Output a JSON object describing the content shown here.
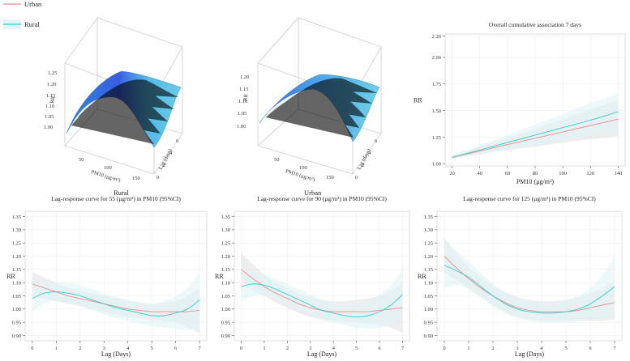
{
  "legend": {
    "items": [
      {
        "label": "Urban",
        "color": "#f08a8a"
      },
      {
        "label": "Rural",
        "color": "#33cccc"
      }
    ]
  },
  "surfaces": [
    {
      "id": "rural",
      "label": "Rural",
      "xlabel": "PM10 (μg/m³)",
      "ylabel": "Lag (days)",
      "zlabel": "RR",
      "x_ticks": [
        "50",
        "100",
        "150"
      ],
      "y_ticks": [
        "0",
        "2",
        "4",
        "6"
      ],
      "z_ticks": [
        "1.00",
        "1.05",
        "1.10",
        "1.15",
        "1.20",
        "1.25"
      ],
      "zlim": [
        1.0,
        1.25
      ]
    },
    {
      "id": "urban",
      "label": "Urban",
      "xlabel": "PM10 (μg/m³)",
      "ylabel": "Lag (days)",
      "zlabel": "RR",
      "x_ticks": [
        "50",
        "100",
        "150"
      ],
      "y_ticks": [
        "0",
        "2",
        "4",
        "6"
      ],
      "z_ticks": [
        "1.00",
        "1.05",
        "1.10",
        "1.15",
        "1.20"
      ],
      "zlim": [
        1.0,
        1.2
      ]
    }
  ],
  "chart_data": [
    {
      "type": "line",
      "title": "Overall cumulative association 7 days",
      "xlabel": "PM10 (μg/m³)",
      "ylabel": "RR",
      "xlim": [
        15,
        145
      ],
      "ylim": [
        0.98,
        2.22
      ],
      "x_ticks": [
        20,
        40,
        60,
        80,
        100,
        120,
        140
      ],
      "y_ticks": [
        "1.00",
        "1.25",
        "1.50",
        "1.75",
        "2.00",
        "2.20"
      ],
      "y_tick_values": [
        1.0,
        1.25,
        1.5,
        1.75,
        2.0,
        2.2
      ],
      "grid": true,
      "series": [
        {
          "name": "Urban",
          "color": "#f08a8a",
          "x": [
            20,
            40,
            60,
            80,
            100,
            120,
            140
          ],
          "values": [
            1.06,
            1.12,
            1.18,
            1.24,
            1.3,
            1.36,
            1.42
          ],
          "lower": [
            1.05,
            1.09,
            1.13,
            1.16,
            1.2,
            1.23,
            1.26
          ],
          "upper": [
            1.08,
            1.16,
            1.24,
            1.33,
            1.42,
            1.51,
            1.6
          ]
        },
        {
          "name": "Rural",
          "color": "#33cccc",
          "x": [
            20,
            40,
            60,
            80,
            100,
            120,
            140
          ],
          "values": [
            1.06,
            1.13,
            1.2,
            1.27,
            1.34,
            1.41,
            1.49
          ],
          "lower": [
            1.05,
            1.1,
            1.14,
            1.18,
            1.22,
            1.26,
            1.3
          ],
          "upper": [
            1.08,
            1.17,
            1.27,
            1.37,
            1.47,
            1.57,
            1.66
          ]
        }
      ]
    },
    {
      "type": "line",
      "title": "Lag-response curve for 55 (μg/m³) in PM10 (95%CI)",
      "xlabel": "Lag (Days)",
      "ylabel": "RR",
      "xlim": [
        -0.3,
        7.3
      ],
      "ylim": [
        0.88,
        1.37
      ],
      "x_ticks": [
        0,
        1,
        2,
        3,
        4,
        5,
        6,
        7
      ],
      "y_ticks": [
        "0.90",
        "0.95",
        "1.00",
        "1.05",
        "1.10",
        "1.15",
        "1.20",
        "1.25",
        "1.30",
        "1.35"
      ],
      "y_tick_values": [
        0.9,
        0.95,
        1.0,
        1.05,
        1.1,
        1.15,
        1.2,
        1.25,
        1.3,
        1.35
      ],
      "grid": true,
      "series": [
        {
          "name": "Urban",
          "color": "#f08a8a",
          "x": [
            0,
            0.5,
            1,
            1.5,
            2,
            2.5,
            3,
            3.5,
            4,
            4.5,
            5,
            5.5,
            6,
            6.5,
            7
          ],
          "values": [
            1.095,
            1.08,
            1.065,
            1.05,
            1.04,
            1.03,
            1.02,
            1.01,
            1.0,
            0.995,
            0.99,
            0.99,
            0.99,
            0.99,
            0.995
          ],
          "lower": [
            1.05,
            1.04,
            1.03,
            1.02,
            1.01,
            1.0,
            0.99,
            0.98,
            0.97,
            0.965,
            0.96,
            0.955,
            0.95,
            0.93,
            0.91
          ],
          "upper": [
            1.14,
            1.12,
            1.1,
            1.08,
            1.07,
            1.06,
            1.05,
            1.04,
            1.03,
            1.025,
            1.02,
            1.025,
            1.03,
            1.05,
            1.08
          ]
        },
        {
          "name": "Rural",
          "color": "#33cccc",
          "x": [
            0,
            0.5,
            1,
            1.5,
            2,
            2.5,
            3,
            3.5,
            4,
            4.5,
            5,
            5.5,
            6,
            6.5,
            7
          ],
          "values": [
            1.04,
            1.06,
            1.065,
            1.06,
            1.05,
            1.035,
            1.02,
            1.005,
            0.995,
            0.985,
            0.975,
            0.975,
            0.985,
            1.0,
            1.035
          ],
          "lower": [
            0.99,
            1.02,
            1.03,
            1.02,
            1.01,
            0.995,
            0.98,
            0.965,
            0.955,
            0.945,
            0.935,
            0.93,
            0.925,
            0.92,
            0.93
          ],
          "upper": [
            1.11,
            1.1,
            1.1,
            1.1,
            1.09,
            1.075,
            1.06,
            1.045,
            1.035,
            1.025,
            1.02,
            1.03,
            1.05,
            1.08,
            1.14
          ]
        }
      ]
    },
    {
      "type": "line",
      "title": "Lag-response curve for 90 (μg/m³) in PM10 (95%CI)",
      "xlabel": "Lag (Days)",
      "ylabel": "RR",
      "xlim": [
        -0.3,
        7.3
      ],
      "ylim": [
        0.88,
        1.37
      ],
      "x_ticks": [
        0,
        1,
        2,
        3,
        4,
        5,
        6,
        7
      ],
      "y_ticks": [
        "0.90",
        "0.95",
        "1.00",
        "1.05",
        "1.10",
        "1.15",
        "1.20",
        "1.25",
        "1.30",
        "1.35"
      ],
      "y_tick_values": [
        0.9,
        0.95,
        1.0,
        1.05,
        1.1,
        1.15,
        1.2,
        1.25,
        1.3,
        1.35
      ],
      "grid": true,
      "series": [
        {
          "name": "Urban",
          "color": "#f08a8a",
          "x": [
            0,
            0.5,
            1,
            1.5,
            2,
            2.5,
            3,
            3.5,
            4,
            4.5,
            5,
            5.5,
            6,
            6.5,
            7
          ],
          "values": [
            1.15,
            1.115,
            1.085,
            1.06,
            1.04,
            1.02,
            1.005,
            0.995,
            0.99,
            0.99,
            0.99,
            0.99,
            0.995,
            1.0,
            1.005
          ],
          "lower": [
            1.1,
            1.07,
            1.05,
            1.025,
            1.005,
            0.985,
            0.97,
            0.96,
            0.955,
            0.955,
            0.95,
            0.945,
            0.94,
            0.93,
            0.91
          ],
          "upper": [
            1.21,
            1.17,
            1.13,
            1.1,
            1.08,
            1.06,
            1.045,
            1.035,
            1.03,
            1.03,
            1.035,
            1.04,
            1.05,
            1.07,
            1.1
          ]
        },
        {
          "name": "Rural",
          "color": "#33cccc",
          "x": [
            0,
            0.5,
            1,
            1.5,
            2,
            2.5,
            3,
            3.5,
            4,
            4.5,
            5,
            5.5,
            6,
            6.5,
            7
          ],
          "values": [
            1.085,
            1.095,
            1.09,
            1.075,
            1.055,
            1.035,
            1.015,
            0.995,
            0.985,
            0.975,
            0.97,
            0.975,
            0.99,
            1.015,
            1.055
          ],
          "lower": [
            1.03,
            1.05,
            1.05,
            1.04,
            1.02,
            1.0,
            0.98,
            0.96,
            0.95,
            0.94,
            0.93,
            0.925,
            0.93,
            0.94,
            0.96
          ],
          "upper": [
            1.15,
            1.14,
            1.13,
            1.115,
            1.095,
            1.075,
            1.055,
            1.035,
            1.025,
            1.02,
            1.02,
            1.03,
            1.055,
            1.09,
            1.15
          ]
        }
      ]
    },
    {
      "type": "line",
      "title": "Lag-response curve for 125 (μg/m³) in PM10 (95%CI)",
      "xlabel": "Lag (Days)",
      "ylabel": "RR",
      "xlim": [
        -0.3,
        7.3
      ],
      "ylim": [
        0.88,
        1.37
      ],
      "x_ticks": [
        0,
        1,
        2,
        3,
        4,
        5,
        6,
        7
      ],
      "y_ticks": [
        "0.90",
        "0.95",
        "1.00",
        "1.05",
        "1.10",
        "1.15",
        "1.20",
        "1.25",
        "1.30",
        "1.35"
      ],
      "y_tick_values": [
        0.9,
        0.95,
        1.0,
        1.05,
        1.1,
        1.15,
        1.2,
        1.25,
        1.3,
        1.35
      ],
      "grid": true,
      "series": [
        {
          "name": "Urban",
          "color": "#f08a8a",
          "x": [
            0,
            0.5,
            1,
            1.5,
            2,
            2.5,
            3,
            3.5,
            4,
            4.5,
            5,
            5.5,
            6,
            6.5,
            7
          ],
          "values": [
            1.2,
            1.155,
            1.115,
            1.08,
            1.05,
            1.025,
            1.005,
            0.995,
            0.99,
            0.99,
            0.99,
            0.995,
            1.005,
            1.015,
            1.025
          ],
          "lower": [
            1.14,
            1.11,
            1.075,
            1.045,
            1.015,
            0.99,
            0.97,
            0.96,
            0.955,
            0.955,
            0.955,
            0.955,
            0.955,
            0.955,
            0.96
          ],
          "upper": [
            1.27,
            1.21,
            1.16,
            1.12,
            1.09,
            1.065,
            1.045,
            1.035,
            1.03,
            1.03,
            1.035,
            1.045,
            1.06,
            1.08,
            1.11
          ]
        },
        {
          "name": "Rural",
          "color": "#33cccc",
          "x": [
            0,
            0.5,
            1,
            1.5,
            2,
            2.5,
            3,
            3.5,
            4,
            4.5,
            5,
            5.5,
            6,
            6.5,
            7
          ],
          "values": [
            1.165,
            1.145,
            1.12,
            1.085,
            1.05,
            1.02,
            1.0,
            0.99,
            0.985,
            0.985,
            0.99,
            1.0,
            1.02,
            1.05,
            1.085
          ],
          "lower": [
            1.08,
            1.09,
            1.075,
            1.045,
            1.01,
            0.985,
            0.965,
            0.955,
            0.95,
            0.95,
            0.95,
            0.955,
            0.96,
            0.965,
            0.97
          ],
          "upper": [
            1.26,
            1.22,
            1.18,
            1.135,
            1.095,
            1.06,
            1.04,
            1.03,
            1.025,
            1.025,
            1.035,
            1.05,
            1.08,
            1.13,
            1.2
          ]
        }
      ]
    }
  ]
}
